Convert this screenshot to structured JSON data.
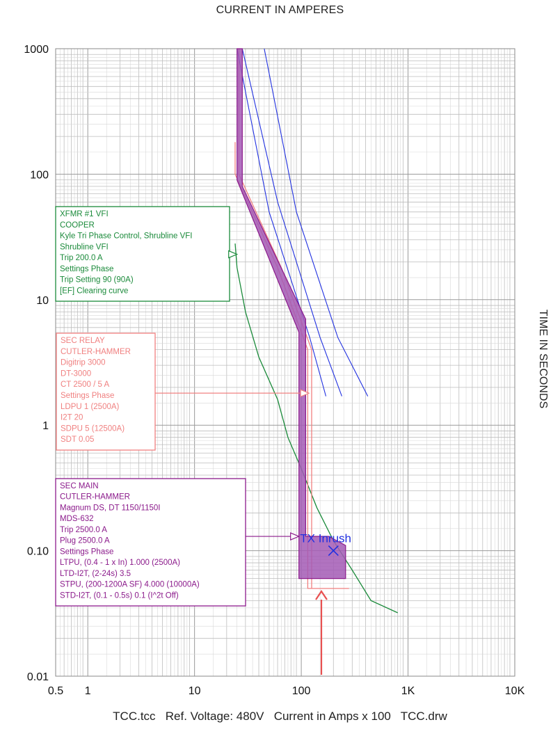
{
  "header": {
    "x_title": "CURRENT IN AMPERES",
    "y_title": "TIME IN SECONDS"
  },
  "footer": {
    "file": "TCC.tcc",
    "ref_voltage": "Ref. Voltage: 480V",
    "scale": "Current in Amps x 100",
    "drawing": "TCC.drw"
  },
  "colors": {
    "xfmr": "#1a8a3a",
    "relay": "#f08080",
    "main": "#8b1a8b",
    "main_fill": "#a35bb5",
    "cable": "#2030e0",
    "inrush": "#2030e0",
    "arrow": "#e85050",
    "grid": "#bdbdbd"
  },
  "chart_data": {
    "type": "line",
    "xscale": "log",
    "yscale": "log",
    "xlim": [
      0.5,
      10000
    ],
    "ylim": [
      0.01,
      1000
    ],
    "grid": true,
    "x_tick_labels": [
      {
        "value": 0.5,
        "label": "0.5"
      },
      {
        "value": 1,
        "label": "1"
      },
      {
        "value": 10,
        "label": "10"
      },
      {
        "value": 100,
        "label": "100"
      },
      {
        "value": 1000,
        "label": "1K"
      },
      {
        "value": 10000,
        "label": "10K"
      }
    ],
    "y_tick_labels": [
      {
        "value": 0.01,
        "label": "0.01"
      },
      {
        "value": 0.1,
        "label": "0.10"
      },
      {
        "value": 1,
        "label": "1"
      },
      {
        "value": 10,
        "label": "10"
      },
      {
        "value": 100,
        "label": "100"
      },
      {
        "value": 1000,
        "label": "1000"
      }
    ],
    "series": [
      {
        "key": "xfmr",
        "style": "line",
        "points": [
          [
            24,
            28
          ],
          [
            25,
            18
          ],
          [
            30,
            8
          ],
          [
            40,
            3.5
          ],
          [
            60,
            1.6
          ],
          [
            75,
            0.8
          ],
          [
            100,
            0.45
          ],
          [
            140,
            0.22
          ],
          [
            200,
            0.12
          ],
          [
            300,
            0.07
          ],
          [
            450,
            0.04
          ],
          [
            800,
            0.032
          ]
        ]
      },
      {
        "key": "relay_min",
        "style": "line",
        "points": [
          [
            24,
            180
          ],
          [
            24,
            100
          ],
          [
            60,
            18
          ],
          [
            115,
            4
          ],
          [
            115,
            1.8
          ],
          [
            115,
            0.05
          ],
          [
            280,
            0.05
          ]
        ]
      },
      {
        "key": "relay_max",
        "style": "line",
        "points": [
          [
            26,
            1000
          ],
          [
            26,
            100
          ],
          [
            65,
            18
          ],
          [
            125,
            4
          ],
          [
            125,
            1.8
          ],
          [
            125,
            0.05
          ]
        ]
      },
      {
        "key": "cable_1",
        "style": "line",
        "points": [
          [
            25,
            1000
          ],
          [
            50,
            50
          ],
          [
            120,
            5
          ],
          [
            170,
            1.7
          ]
        ]
      },
      {
        "key": "cable_2",
        "style": "line",
        "points": [
          [
            28,
            1000
          ],
          [
            60,
            60
          ],
          [
            150,
            5
          ],
          [
            240,
            1.7
          ]
        ]
      },
      {
        "key": "cable_3",
        "style": "line",
        "points": [
          [
            45,
            1000
          ],
          [
            90,
            50
          ],
          [
            220,
            5
          ],
          [
            420,
            1.7
          ]
        ]
      },
      {
        "key": "main_band",
        "style": "band",
        "points": [
          [
            25,
            1000
          ],
          [
            28,
            1000
          ],
          [
            28,
            80
          ],
          [
            110,
            7
          ],
          [
            110,
            0.13
          ],
          [
            180,
            0.13
          ],
          [
            260,
            0.11
          ],
          [
            260,
            0.06
          ],
          [
            95,
            0.06
          ],
          [
            95,
            5.5
          ],
          [
            25,
            90
          ]
        ]
      }
    ],
    "labels": [
      {
        "key": "xfmr",
        "color": "xfmr",
        "arrow_to": [
          25,
          23
        ],
        "lines": [
          "XFMR #1 VFI",
          "COOPER",
          "Kyle Tri Phase Control, Shrubline VFI",
          "Shrubline VFI",
          "Trip 200.0 A",
          "Settings Phase",
          "   Trip Setting 90 (90A)",
          "   [EF] Clearing curve"
        ]
      },
      {
        "key": "relay",
        "color": "relay",
        "arrow_to": [
          118,
          1.8
        ],
        "lines": [
          "SEC RELAY",
          "CUTLER-HAMMER",
          "Digitrip 3000",
          "DT-3000",
          "CT 2500 / 5 A",
          "Settings Phase",
          "   LDPU 1 (2500A)",
          "   I2T 20",
          "   SDPU 5 (12500A)",
          "   SDT 0.05"
        ]
      },
      {
        "key": "main",
        "color": "main",
        "arrow_to": [
          95,
          0.13
        ],
        "lines": [
          "SEC MAIN",
          "CUTLER-HAMMER",
          "Magnum DS, DT 1150/1150I",
          "MDS-632",
          "Trip 2500.0 A",
          "Plug 2500.0 A",
          "Settings Phase",
          "   LTPU, (0.4 - 1 x In) 1.000 (2500A)",
          "   LTD-I2T, (2-24s) 3.5",
          "   STPU, (200-1200A SF) 4.000 (10000A)",
          "   STD-I2T, (0.1 - 0.5s) 0.1 (I^2t Off)"
        ]
      }
    ],
    "annotations": [
      {
        "type": "point",
        "marker": "x",
        "label": "TX Inrush",
        "x": 200,
        "y": 0.1
      }
    ]
  }
}
